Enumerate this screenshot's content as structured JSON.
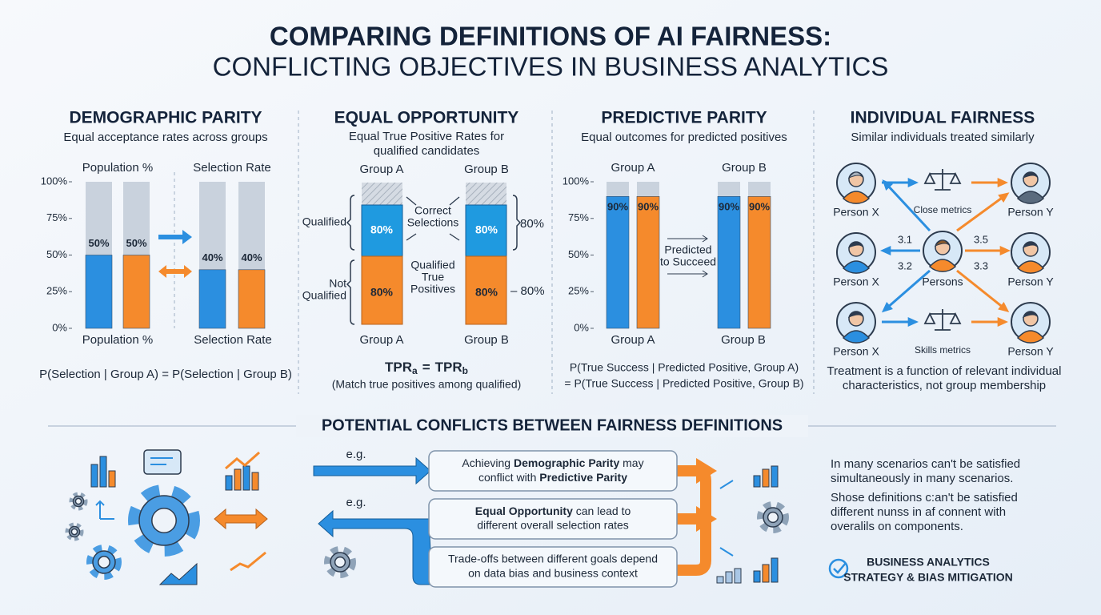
{
  "title": {
    "line1": "COMPARING DEFINITIONS OF AI FAIRNESS:",
    "line2": "CONFLICTING OBJECTIVES IN BUSINESS ANALYTICS"
  },
  "panels": [
    {
      "heading": "DEMOGRAPHIC PARITY",
      "subtitle": "Equal acceptance rates across groups",
      "chart": {
        "type": "bar",
        "categories": [
          "Population %",
          "Selection Rate"
        ],
        "series": [
          {
            "color": "#2b8fe0",
            "values": [
              50,
              40
            ],
            "value_labels": [
              "50%",
              "40%"
            ]
          },
          {
            "color": "#f58a2c",
            "values": [
              50,
              40
            ],
            "value_labels": [
              "50%",
              "40%"
            ]
          }
        ],
        "ylim": [
          0,
          100
        ],
        "yticks": [
          {
            "value": 0,
            "label": "0%"
          },
          {
            "value": 25,
            "label": "25%"
          },
          {
            "value": 50,
            "label": "50%"
          },
          {
            "value": 75,
            "label": "75%"
          },
          {
            "value": 100,
            "label": "100%"
          }
        ]
      },
      "bottom_labels": [
        "Population %",
        "Selection Rate"
      ],
      "formula": "P(Selection | Group A) = P(Selection | Group B)"
    },
    {
      "heading": "EQUAL OPPORTUNITY",
      "subtitle": [
        "Equal True Positive Rates for",
        "qualified candidates"
      ],
      "groups": [
        "Group A",
        "Group B"
      ],
      "bars": [
        {
          "qualified": "80%",
          "not_qualified": "80%"
        },
        {
          "qualified": "80%",
          "not_qualified": "80%"
        }
      ],
      "row_labels": {
        "qualified": "Qualified",
        "not_qualified": [
          "Not",
          "Qualified"
        ]
      },
      "right_labels": [
        "80%",
        "– 80%"
      ],
      "annotations": {
        "correct": [
          "Correct",
          "Selections"
        ],
        "true_positives": [
          "Qualified",
          "True",
          "Positives"
        ]
      },
      "bottom_labels": [
        "Group A",
        "Group B"
      ],
      "formula": {
        "lhs": "TPR",
        "lhs_sub": "a",
        "op": "=",
        "rhs": "TPR",
        "rhs_sub": "b"
      },
      "note": "(Match true positives among qualified)"
    },
    {
      "heading": "PREDICTIVE PARITY",
      "subtitle": "Equal outcomes for predicted positives",
      "chart": {
        "type": "bar",
        "categories": [
          "Group A",
          "Group B"
        ],
        "series": [
          {
            "color": "#2b8fe0",
            "values": [
              90,
              90
            ],
            "value_labels": [
              "90%",
              "90%"
            ]
          },
          {
            "color": "#f58a2c",
            "values": [
              90,
              90
            ],
            "value_labels": [
              "90%",
              "90%"
            ]
          }
        ],
        "ylim": [
          0,
          100
        ],
        "yticks": [
          {
            "value": 0,
            "label": "0%"
          },
          {
            "value": 25,
            "label": "25%"
          },
          {
            "value": 50,
            "label": "50%"
          },
          {
            "value": 75,
            "label": "75%"
          },
          {
            "value": 100,
            "label": "100%"
          }
        ]
      },
      "middle_note": [
        "Predicted",
        "to Succeed"
      ],
      "bottom_labels": [
        "Group A",
        "Group B"
      ],
      "formula": [
        "P(True Success | Predicted Positive, Group A)",
        "= P(True Success | Predicted Positive, Group B)"
      ]
    },
    {
      "heading": "INDIVIDUAL FAIRNESS",
      "subtitle": "Similar individuals treated similarly",
      "left_labels": [
        "Person X",
        "Person X",
        "Person X"
      ],
      "right_labels": [
        "Person Y",
        "Person Y",
        "Person Y"
      ],
      "center_label": "Persons",
      "metrics": [
        "Close metrics",
        "Skills metrics"
      ],
      "scores": [
        "3.1",
        "3.2",
        "3.5",
        "3.3"
      ],
      "footer": [
        "Treatment is a function of relevant individual",
        "characteristics, not group membership"
      ]
    }
  ],
  "conflicts": {
    "title": "POTENTIAL CONFLICTS BETWEEN FAIRNESS DEFINITIONS",
    "eg": [
      "e.g.",
      "e.g."
    ],
    "boxes": [
      [
        [
          "Achieving ",
          "Demographic Parity",
          " may"
        ],
        [
          "conflict with ",
          "Predictive Parity"
        ]
      ],
      [
        [
          "Equal Opportunity",
          " can lead to"
        ],
        [
          "different overall selection rates"
        ]
      ],
      [
        [
          "Trade-offs between different goals depend"
        ],
        [
          "on data bias and business context"
        ]
      ]
    ],
    "side_text": [
      "In many scenarios can't be satisfied",
      "simultaneously in many scenarios.",
      "Shose definitions c:an't be satisfied",
      "different nunss in af connent with",
      "overalils on components."
    ],
    "footer": [
      "BUSINESS ANALYTICS",
      "STRATEGY & BIAS MITIGATION"
    ]
  }
}
